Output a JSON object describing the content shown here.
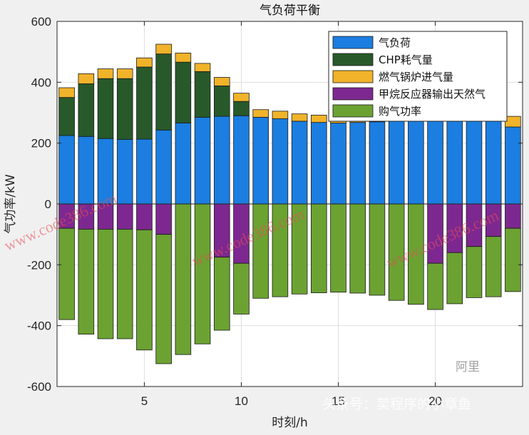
{
  "chart_data": {
    "type": "bar",
    "stacked": true,
    "title": "气负荷平衡",
    "xlabel": "时刻/h",
    "ylabel": "气功率/kW",
    "xlim": [
      0.5,
      24.5
    ],
    "ylim": [
      -600,
      600
    ],
    "xticks": [
      5,
      10,
      15,
      20
    ],
    "yticks": [
      -600,
      -400,
      -200,
      0,
      200,
      400,
      600
    ],
    "grid": true,
    "legend_position": "top-right",
    "categories": [
      1,
      2,
      3,
      4,
      5,
      6,
      7,
      8,
      9,
      10,
      11,
      12,
      13,
      14,
      15,
      16,
      17,
      18,
      19,
      20,
      21,
      22,
      23,
      24
    ],
    "series": [
      {
        "name": "气负荷",
        "color": "#1b7ee0",
        "values": [
          225,
          222,
          215,
          212,
          213,
          243,
          266,
          285,
          288,
          290,
          285,
          280,
          272,
          268,
          266,
          268,
          270,
          272,
          275,
          276,
          277,
          276,
          274,
          253
        ]
      },
      {
        "name": "CHP耗气量",
        "color": "#27592a",
        "values": [
          125,
          173,
          197,
          200,
          237,
          250,
          200,
          150,
          100,
          47,
          0,
          0,
          0,
          0,
          0,
          0,
          0,
          0,
          0,
          0,
          0,
          0,
          0,
          0
        ]
      },
      {
        "name": "燃气锅炉进气量",
        "color": "#f0b32a",
        "values": [
          32,
          33,
          32,
          32,
          30,
          32,
          30,
          27,
          28,
          27,
          25,
          25,
          24,
          24,
          24,
          25,
          30,
          45,
          55,
          72,
          50,
          30,
          32,
          35
        ]
      },
      {
        "name": "甲烷反应器输出天然气",
        "color": "#7d2890",
        "values": [
          -80,
          -83,
          -83,
          -83,
          -85,
          -100,
          0,
          0,
          -175,
          -195,
          0,
          0,
          0,
          0,
          0,
          0,
          0,
          0,
          0,
          -195,
          -160,
          -140,
          -107,
          -80
        ]
      },
      {
        "name": "购气功率",
        "color": "#6ba232",
        "values": [
          -300,
          -345,
          -360,
          -360,
          -395,
          -425,
          -495,
          -460,
          -240,
          -167,
          -310,
          -305,
          -296,
          -292,
          -290,
          -293,
          -300,
          -317,
          -330,
          -152,
          -168,
          -168,
          -198,
          -208
        ]
      }
    ]
  },
  "watermarks": {
    "site_1": "www.code386.com",
    "site_2": "www.code386.com",
    "site_3": "www.code386.com",
    "brand": "头条号：荬程序的小章鱼",
    "logo": "阿里"
  }
}
